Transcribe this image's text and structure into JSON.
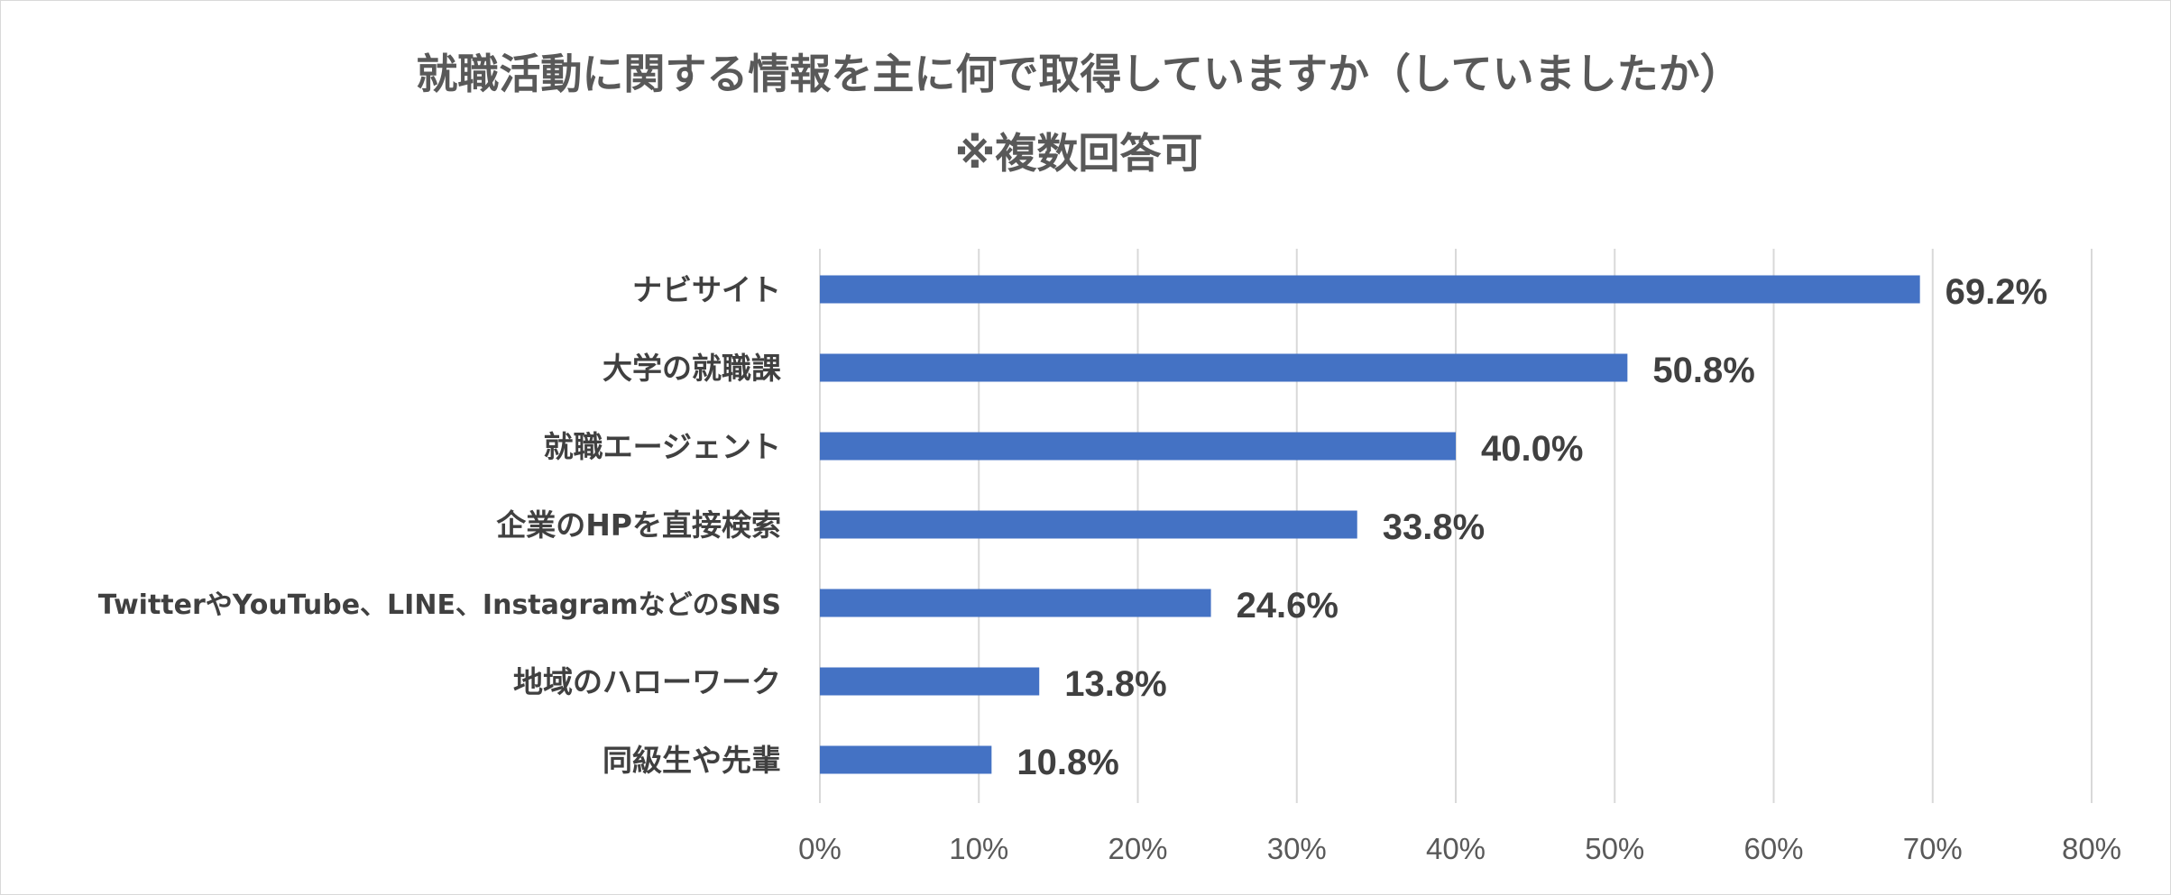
{
  "chart_data": {
    "type": "bar",
    "orientation": "horizontal",
    "title": "就職活動に関する情報を主に何で取得していますか（していましたか）",
    "subtitle": "※複数回答可",
    "categories": [
      "ナビサイト",
      "大学の就職課",
      "就職エージェント",
      "企業のHPを直接検索",
      "TwitterやYouTube、LINE、InstagramなどのSNS",
      "地域のハローワーク",
      "同級生や先輩"
    ],
    "values": [
      69.2,
      50.8,
      40.0,
      33.8,
      24.6,
      13.8,
      10.8
    ],
    "value_labels": [
      "69.2%",
      "50.8%",
      "40.0%",
      "33.8%",
      "24.6%",
      "13.8%",
      "10.8%"
    ],
    "xlim": [
      0,
      80
    ],
    "xticks": [
      0,
      10,
      20,
      30,
      40,
      50,
      60,
      70,
      80
    ],
    "xtick_labels": [
      "0%",
      "10%",
      "20%",
      "30%",
      "40%",
      "50%",
      "60%",
      "70%",
      "80%"
    ],
    "xlabel": "",
    "ylabel": "",
    "grid": true,
    "legend": "none",
    "bar_color": "#4472c4"
  }
}
